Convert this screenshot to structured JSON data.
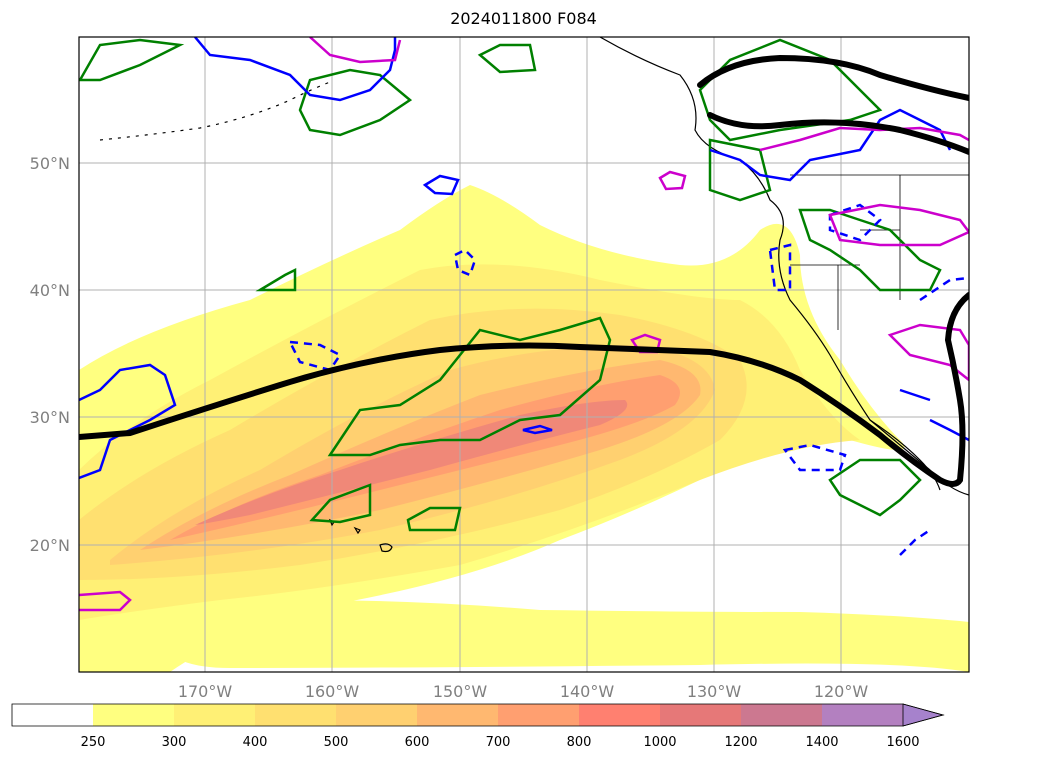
{
  "title": "2024011800 F084",
  "map": {
    "lat_labels": [
      "50°N",
      "40°N",
      "30°N",
      "20°N"
    ],
    "lon_labels": [
      "170°W",
      "160°W",
      "150°W",
      "140°W",
      "130°W",
      "120°W"
    ],
    "lat_values": [
      50,
      40,
      30,
      20
    ],
    "lon_values": [
      -170,
      -160,
      -150,
      -140,
      -130,
      -120
    ]
  },
  "colorbar": {
    "levels": [
      "250",
      "300",
      "400",
      "500",
      "600",
      "700",
      "800",
      "1000",
      "1200",
      "1400",
      "1600"
    ],
    "colors": [
      "#ffffff",
      "#ffff80",
      "#fff075",
      "#ffe070",
      "#ffd070",
      "#ffb870",
      "#ff9f70",
      "#ff8070",
      "#e67878",
      "#cc7890",
      "#b380c0",
      "#a682cc"
    ],
    "extend": "max"
  },
  "colors": {
    "jet_axis": "#000000",
    "green_contours": "#008000",
    "blue_contours": "#0000ff",
    "magenta_contours": "#cc00cc",
    "grid": "#b0b0b0",
    "coastline": "#000000"
  }
}
